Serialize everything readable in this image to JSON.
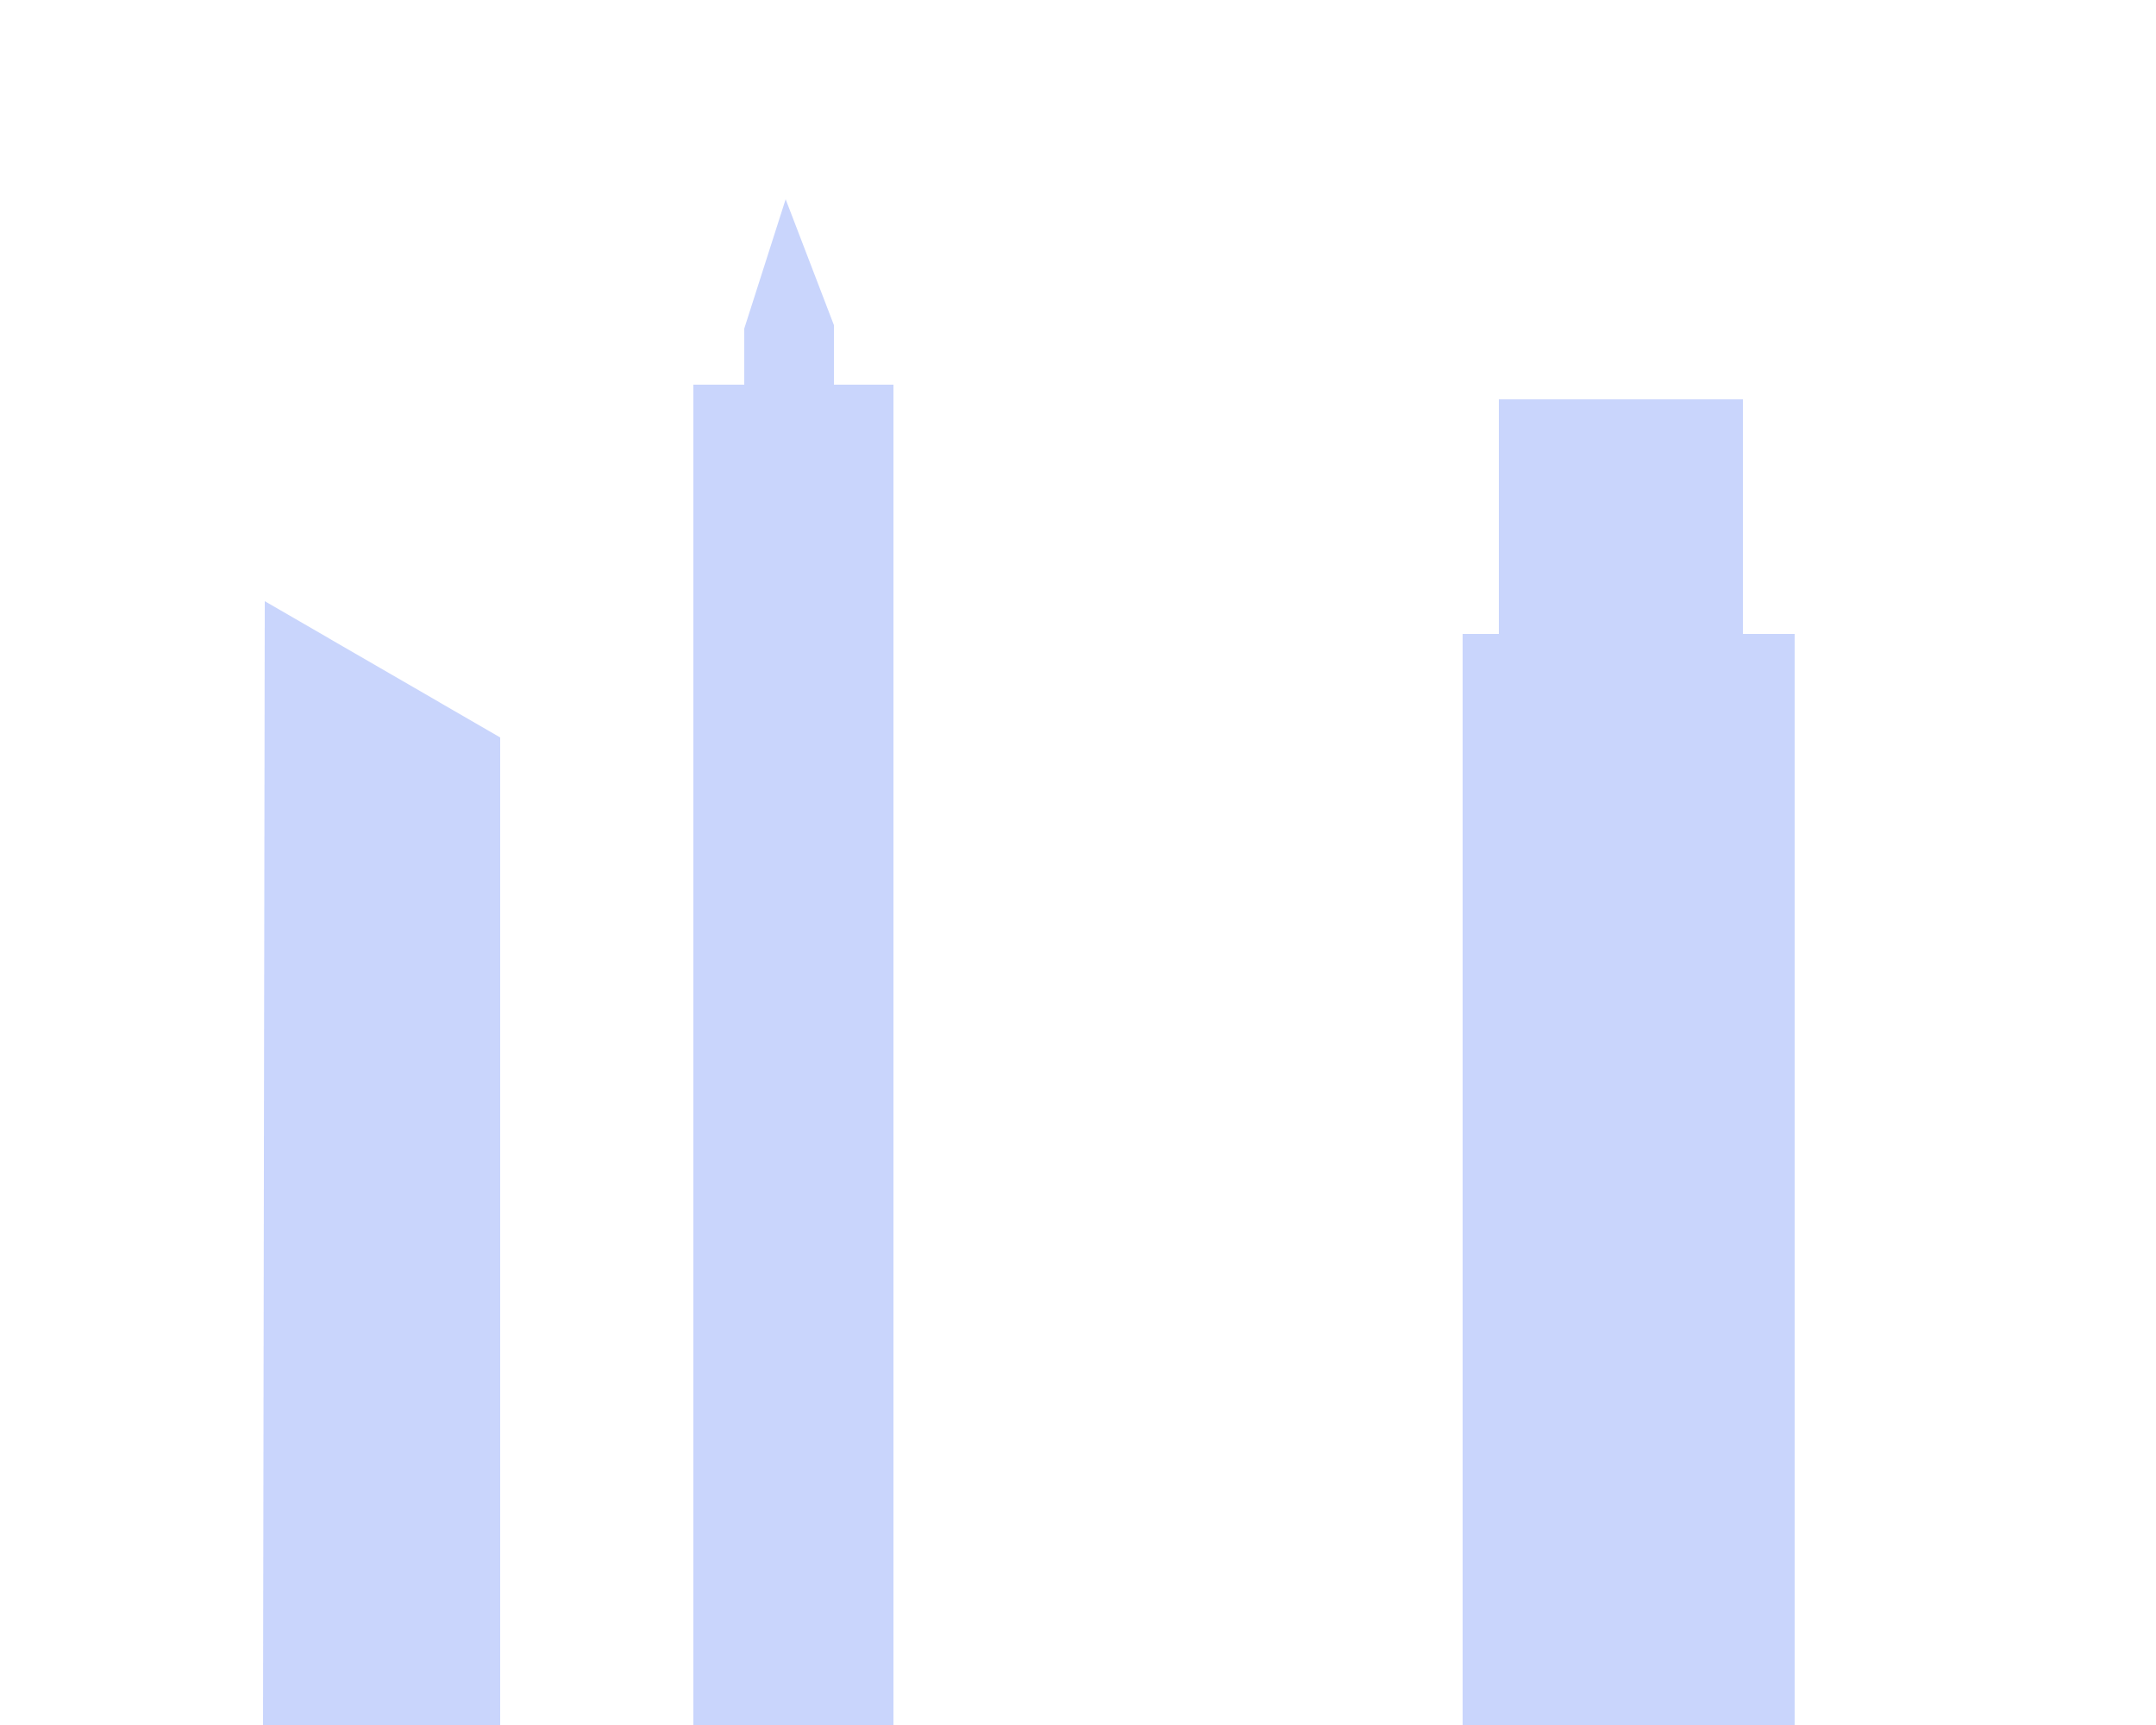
{
  "scene": {
    "background_color": "#ffffff",
    "building_color": "#c9d5fc",
    "buildings": [
      {
        "name": "building-slanted-roof"
      },
      {
        "name": "building-spire"
      },
      {
        "name": "building-stepped"
      }
    ]
  }
}
